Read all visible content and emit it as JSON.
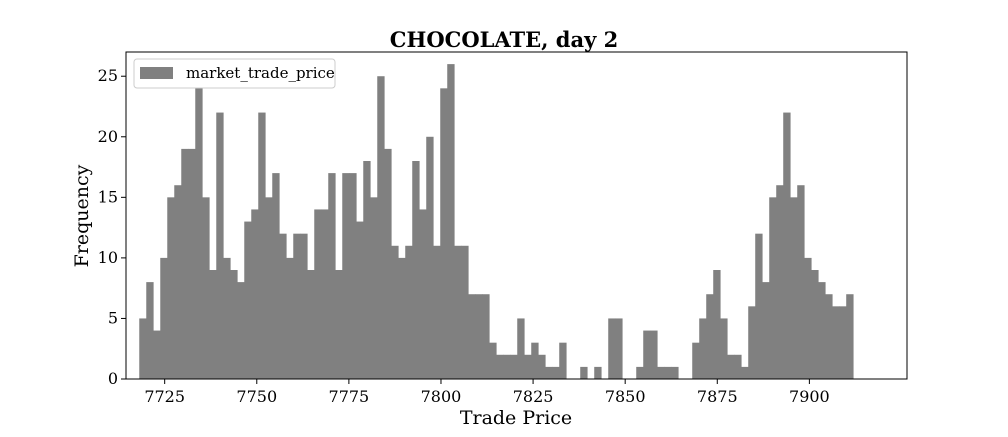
{
  "chart_data": {
    "type": "bar",
    "title": "CHOCOLATE, day 2",
    "xlabel": "Trade Price",
    "ylabel": "Frequency",
    "xlim": [
      7714.5,
      7926.5
    ],
    "ylim": [
      0,
      27
    ],
    "xticks": [
      7725,
      7750,
      7775,
      7800,
      7825,
      7850,
      7875,
      7900
    ],
    "yticks": [
      0,
      5,
      10,
      15,
      20,
      25
    ],
    "grid": false,
    "legend": {
      "placement": "top-left",
      "entries": [
        "market_trade_price"
      ]
    },
    "bar_color": "#808080",
    "series": [
      {
        "name": "market_trade_price",
        "bin_width": 1.9,
        "bin_start": 7718.1,
        "x": [
          7719.1,
          7721.0,
          7722.9,
          7724.8,
          7726.7,
          7728.6,
          7730.5,
          7732.4,
          7734.3,
          7736.2,
          7738.1,
          7740.0,
          7741.9,
          7743.8,
          7745.7,
          7747.6,
          7749.5,
          7751.4,
          7753.3,
          7755.2,
          7757.1,
          7759.0,
          7760.9,
          7762.8,
          7764.7,
          7766.6,
          7768.5,
          7770.4,
          7772.3,
          7774.2,
          7776.1,
          7778.0,
          7779.9,
          7781.8,
          7783.7,
          7785.6,
          7787.5,
          7789.4,
          7791.3,
          7793.2,
          7795.1,
          7797.0,
          7798.9,
          7800.8,
          7802.7,
          7804.6,
          7806.5,
          7808.4,
          7810.3,
          7812.2,
          7814.1,
          7816.0,
          7817.9,
          7819.8,
          7821.7,
          7823.6,
          7825.5,
          7827.4,
          7829.3,
          7831.2,
          7833.1,
          7835.0,
          7836.9,
          7838.8,
          7840.7,
          7842.6,
          7844.5,
          7846.4,
          7848.3,
          7850.2,
          7852.1,
          7854.0,
          7855.9,
          7857.8,
          7859.7,
          7861.6,
          7863.5,
          7865.4,
          7867.3,
          7869.2,
          7871.1,
          7873.0,
          7874.9,
          7876.8,
          7878.7,
          7880.6,
          7882.5,
          7884.4,
          7886.3,
          7888.2,
          7890.1,
          7892.0,
          7893.9,
          7895.8,
          7897.7,
          7899.6,
          7901.5,
          7903.4,
          7905.3,
          7907.2,
          7909.1,
          7911.0
        ],
        "values": [
          5,
          8,
          4,
          10,
          15,
          16,
          19,
          19,
          25,
          15,
          9,
          22,
          10,
          9,
          8,
          13,
          14,
          22,
          15,
          17,
          12,
          10,
          12,
          12,
          9,
          14,
          14,
          17,
          9,
          17,
          17,
          13,
          18,
          15,
          25,
          19,
          11,
          10,
          11,
          18,
          14,
          20,
          11,
          24,
          26,
          11,
          11,
          7,
          7,
          7,
          3,
          2,
          2,
          2,
          5,
          2,
          3,
          2,
          1,
          1,
          3,
          0,
          0,
          1,
          0,
          1,
          0,
          5,
          5,
          0,
          0,
          1,
          4,
          4,
          1,
          1,
          1,
          0,
          0,
          3,
          5,
          7,
          9,
          5,
          2,
          2,
          1,
          6,
          12,
          8,
          15,
          16,
          22,
          15,
          16,
          10,
          9,
          8,
          7,
          6,
          6,
          7
        ]
      }
    ]
  }
}
